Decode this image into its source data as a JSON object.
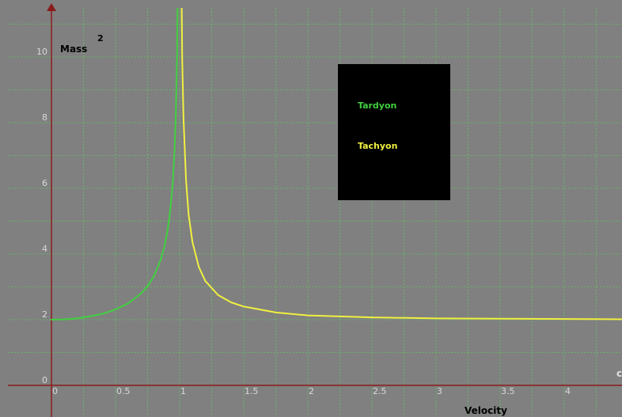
{
  "chart_data": {
    "type": "line",
    "title": "",
    "xlabel": "Velocity",
    "ylabel": "Mass",
    "ylabel_superscript": "2",
    "corner_label": "c",
    "xlim": [
      0,
      4.5
    ],
    "ylim": [
      0,
      11.5
    ],
    "x_ticks": [
      "0",
      "0.5",
      "1",
      "1.5",
      "2",
      "2.5",
      "3",
      "3.5",
      "4"
    ],
    "y_ticks": [
      "0",
      "2",
      "4",
      "6",
      "8",
      "10"
    ],
    "grid": true,
    "legend_position": "top-center",
    "series": [
      {
        "name": "Tardyon",
        "color": "#40d040",
        "points": [
          [
            0,
            2.0
          ],
          [
            0.1,
            2.01
          ],
          [
            0.2,
            2.04
          ],
          [
            0.3,
            2.1
          ],
          [
            0.4,
            2.18
          ],
          [
            0.5,
            2.31
          ],
          [
            0.6,
            2.5
          ],
          [
            0.7,
            2.8
          ],
          [
            0.75,
            3.02
          ],
          [
            0.8,
            3.33
          ],
          [
            0.85,
            3.8
          ],
          [
            0.88,
            4.21
          ],
          [
            0.9,
            4.59
          ],
          [
            0.92,
            5.1
          ],
          [
            0.94,
            5.86
          ],
          [
            0.95,
            6.4
          ],
          [
            0.96,
            7.14
          ],
          [
            0.97,
            8.22
          ],
          [
            0.98,
            10.05
          ],
          [
            0.99,
            14.2
          ]
        ]
      },
      {
        "name": "Tachyon",
        "color": "#f0f040",
        "points": [
          [
            1.01,
            14.0
          ],
          [
            1.02,
            9.95
          ],
          [
            1.03,
            8.15
          ],
          [
            1.05,
            6.25
          ],
          [
            1.07,
            5.2
          ],
          [
            1.1,
            4.36
          ],
          [
            1.15,
            3.6
          ],
          [
            1.2,
            3.18
          ],
          [
            1.3,
            2.75
          ],
          [
            1.4,
            2.53
          ],
          [
            1.5,
            2.4
          ],
          [
            1.75,
            2.22
          ],
          [
            2.0,
            2.13
          ],
          [
            2.5,
            2.07
          ],
          [
            3.0,
            2.04
          ],
          [
            3.5,
            2.03
          ],
          [
            4.0,
            2.02
          ],
          [
            4.5,
            2.01
          ]
        ]
      }
    ]
  }
}
